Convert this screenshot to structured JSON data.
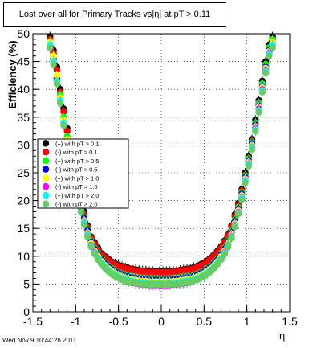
{
  "chart_data": {
    "type": "scatter",
    "title": "Lost over all for Primary Tracks vs|η| at pT > 0.11",
    "xlabel": "η",
    "ylabel": "Efficiency (%)",
    "xlim": [
      -1.5,
      1.5
    ],
    "ylim": [
      0,
      50
    ],
    "x_ticks": [
      "-1.5",
      "-1",
      "-0.5",
      "0",
      "0.5",
      "1",
      "1.5"
    ],
    "y_ticks": [
      "0",
      "5",
      "10",
      "15",
      "20",
      "25",
      "30",
      "35",
      "40",
      "45",
      "50"
    ],
    "grid": true,
    "legend_position": "center-left",
    "x": [
      -1.3,
      -1.26,
      -1.22,
      -1.18,
      -1.14,
      -1.1,
      -1.06,
      -1.02,
      -0.98,
      -0.94,
      -0.9,
      -0.86,
      -0.82,
      -0.78,
      -0.74,
      -0.7,
      -0.66,
      -0.62,
      -0.58,
      -0.54,
      -0.5,
      -0.46,
      -0.42,
      -0.38,
      -0.34,
      -0.3,
      -0.26,
      -0.22,
      -0.18,
      -0.14,
      -0.1,
      -0.06,
      -0.02,
      0.02,
      0.06,
      0.1,
      0.14,
      0.18,
      0.22,
      0.26,
      0.3,
      0.34,
      0.38,
      0.42,
      0.46,
      0.5,
      0.54,
      0.58,
      0.62,
      0.66,
      0.7,
      0.74,
      0.78,
      0.82,
      0.86,
      0.9,
      0.94,
      0.98,
      1.02,
      1.06,
      1.1,
      1.14,
      1.18,
      1.22,
      1.26,
      1.3
    ],
    "series": [
      {
        "name": "(+) with pT > 0.1",
        "color": "#000000",
        "marker": "circle",
        "values": [
          49.5,
          47,
          44,
          40,
          36.5,
          33,
          29.5,
          26,
          23,
          20.5,
          18,
          15.5,
          13.5,
          12.5,
          11.5,
          10.5,
          10,
          9.5,
          9,
          8.7,
          8.4,
          8.2,
          8,
          7.8,
          7.7,
          7.6,
          7.5,
          7.4,
          7.4,
          7.3,
          7.3,
          7.3,
          7.3,
          7.3,
          7.3,
          7.3,
          7.4,
          7.4,
          7.5,
          7.6,
          7.7,
          7.8,
          8,
          8.2,
          8.5,
          8.8,
          9.2,
          9.7,
          10.3,
          11,
          11.8,
          12.8,
          14,
          15.5,
          17.5,
          19.5,
          22,
          25,
          28,
          31,
          34.5,
          38,
          41.5,
          45,
          48,
          49.5
        ]
      },
      {
        "name": "(-) with pT > 0.1",
        "color": "#ff0000",
        "marker": "circle",
        "values": [
          49,
          46.5,
          43.5,
          39.5,
          36,
          32.5,
          29,
          25.5,
          22.5,
          20,
          17.5,
          15.2,
          13.3,
          12.2,
          11.2,
          10.3,
          9.8,
          9.3,
          8.8,
          8.5,
          8.2,
          8,
          7.8,
          7.6,
          7.5,
          7.4,
          7.3,
          7.2,
          7.2,
          7.1,
          7.1,
          7.1,
          7.1,
          7.1,
          7.1,
          7.1,
          7.2,
          7.2,
          7.3,
          7.4,
          7.5,
          7.6,
          7.8,
          8,
          8.3,
          8.6,
          9,
          9.5,
          10.1,
          10.8,
          11.6,
          12.6,
          13.8,
          15.3,
          17.2,
          19.2,
          21.8,
          24.6,
          27.6,
          30.6,
          34,
          37.5,
          41,
          44.5,
          47.5,
          49
        ]
      },
      {
        "name": "(+) with pT > 0.5",
        "color": "#00ff00",
        "marker": "circle",
        "values": [
          48.5,
          46,
          42.5,
          39,
          35,
          31.5,
          28,
          24.8,
          22,
          19.5,
          17,
          14.8,
          12.8,
          11.5,
          10.5,
          9.6,
          8.9,
          8.3,
          7.8,
          7.4,
          7.1,
          6.8,
          6.6,
          6.4,
          6.3,
          6.2,
          6.1,
          6,
          6,
          5.9,
          5.9,
          5.9,
          5.9,
          5.9,
          5.9,
          5.9,
          6,
          6,
          6.1,
          6.2,
          6.3,
          6.4,
          6.6,
          6.8,
          7.1,
          7.4,
          7.8,
          8.3,
          8.9,
          9.6,
          10.5,
          11.5,
          12.8,
          14.5,
          16.5,
          18.8,
          21.5,
          24.5,
          27.5,
          30.5,
          34,
          37.5,
          41,
          44.5,
          47.5,
          49
        ]
      },
      {
        "name": "(-) with pT > 0.5",
        "color": "#0000ff",
        "marker": "circle",
        "values": [
          48,
          45.5,
          42,
          38.5,
          34.5,
          31,
          27.5,
          24.5,
          21.7,
          19.2,
          16.8,
          14.6,
          12.6,
          11.3,
          10.3,
          9.4,
          8.7,
          8.1,
          7.6,
          7.2,
          6.9,
          6.6,
          6.4,
          6.2,
          6.1,
          6,
          5.9,
          5.8,
          5.8,
          5.7,
          5.7,
          5.7,
          5.7,
          5.7,
          5.7,
          5.7,
          5.8,
          5.8,
          5.9,
          6,
          6.1,
          6.2,
          6.4,
          6.6,
          6.9,
          7.2,
          7.6,
          8.1,
          8.7,
          9.4,
          10.3,
          11.3,
          12.6,
          14.2,
          16.2,
          18.5,
          21.2,
          24.2,
          27.2,
          30.2,
          33.6,
          37,
          40.5,
          44,
          47,
          48.5
        ]
      },
      {
        "name": "(+) with pT > 1.0",
        "color": "#ffff00",
        "marker": "circle",
        "values": [
          48.5,
          46,
          42.5,
          38.5,
          34.5,
          31,
          27.5,
          24.2,
          21.3,
          18.8,
          16.4,
          14.2,
          12.3,
          11,
          10,
          9.1,
          8.4,
          7.8,
          7.3,
          6.9,
          6.6,
          6.3,
          6.1,
          5.9,
          5.8,
          5.7,
          5.6,
          5.5,
          5.5,
          5.4,
          5.4,
          5.4,
          5.4,
          5.4,
          5.4,
          5.4,
          5.5,
          5.5,
          5.6,
          5.7,
          5.8,
          5.9,
          6.1,
          6.3,
          6.6,
          6.9,
          7.3,
          7.8,
          8.4,
          9.1,
          10,
          11,
          12.3,
          13.9,
          15.9,
          18.2,
          20.9,
          23.9,
          26.9,
          29.9,
          33.3,
          36.8,
          40.3,
          43.8,
          46.8,
          48.5
        ]
      },
      {
        "name": "(-) with pT > 1.0",
        "color": "#ff00ff",
        "marker": "circle",
        "values": [
          47.5,
          45,
          41.5,
          38,
          34,
          30.5,
          27,
          23.8,
          21,
          18.5,
          16.1,
          13.9,
          12,
          10.7,
          9.6,
          8.7,
          8,
          7.4,
          6.9,
          6.5,
          6.1,
          5.8,
          5.6,
          5.4,
          5.2,
          5.1,
          5,
          4.9,
          4.9,
          4.8,
          4.8,
          4.8,
          4.8,
          4.8,
          4.8,
          4.8,
          4.9,
          4.9,
          5,
          5.1,
          5.2,
          5.4,
          5.6,
          5.8,
          6.1,
          6.5,
          6.9,
          7.4,
          8,
          8.7,
          9.6,
          10.7,
          12,
          13.6,
          15.6,
          17.9,
          20.6,
          23.6,
          26.6,
          29.6,
          33,
          36.5,
          40,
          43.5,
          46.5,
          48
        ]
      },
      {
        "name": "(+) with pT > 2.0",
        "color": "#00ffff",
        "marker": "circle",
        "values": [
          48,
          45,
          41.5,
          38,
          34,
          30.5,
          27,
          23.8,
          21,
          18.4,
          16,
          13.8,
          11.9,
          10.6,
          9.6,
          8.8,
          8.1,
          7.5,
          7,
          6.6,
          6.3,
          6,
          5.8,
          5.6,
          5.5,
          5.4,
          5.3,
          5.2,
          5.2,
          5.1,
          5.1,
          5.1,
          5.1,
          5.1,
          5.1,
          5.1,
          5.2,
          5.2,
          5.3,
          5.4,
          5.5,
          5.6,
          5.8,
          6,
          6.3,
          6.6,
          7,
          7.5,
          8.1,
          8.8,
          9.6,
          10.6,
          11.9,
          13.5,
          15.5,
          17.8,
          20.5,
          23.5,
          26.5,
          29.5,
          32.8,
          36.2,
          39.8,
          43.3,
          46.3,
          48
        ]
      },
      {
        "name": "(-) with pT > 2.0",
        "color": "#66cc66",
        "marker": "circle",
        "values": [
          47.5,
          44.5,
          41,
          37.5,
          33.5,
          30,
          26.5,
          23.3,
          20.6,
          18,
          15.6,
          13.5,
          11.7,
          10.4,
          9.4,
          8.6,
          7.9,
          7.3,
          6.8,
          6.4,
          6.1,
          5.8,
          5.6,
          5.4,
          5.3,
          5.2,
          5.1,
          5,
          5,
          4.9,
          4.9,
          4.9,
          4.9,
          4.9,
          4.9,
          4.9,
          5,
          5,
          5.1,
          5.2,
          5.3,
          5.4,
          5.6,
          5.8,
          6.1,
          6.4,
          6.8,
          7.3,
          7.9,
          8.6,
          9.4,
          10.4,
          11.7,
          13.3,
          15.3,
          17.6,
          20.2,
          23.2,
          26.2,
          29.2,
          32.5,
          35.9,
          39.5,
          43,
          46,
          47.5
        ]
      }
    ]
  },
  "footer": {
    "datestamp": "Wed Nov  9 10:44:26 2011"
  }
}
